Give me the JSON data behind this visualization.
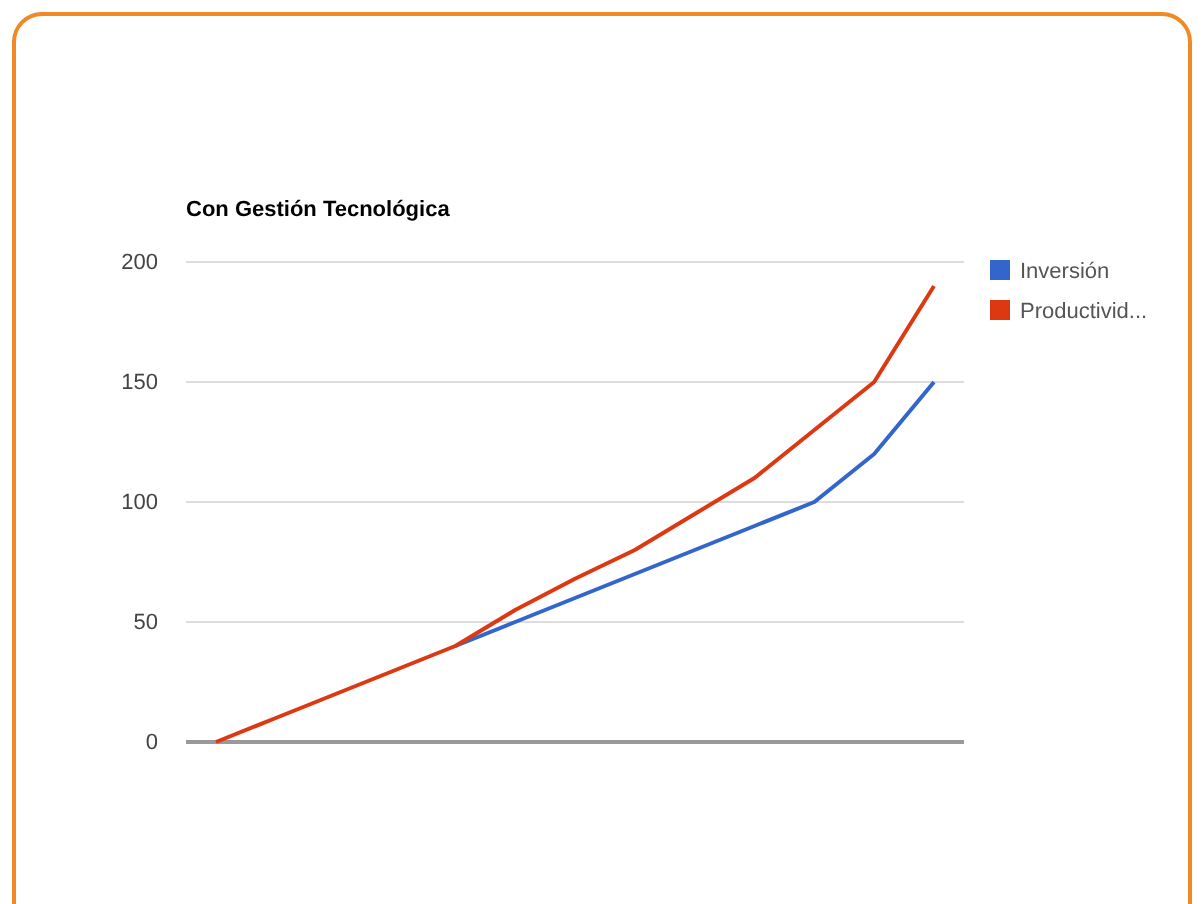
{
  "chart_data": {
    "type": "line",
    "title": "Con Gestión Tecnológica",
    "categories": [
      null,
      null,
      null,
      null,
      null,
      null,
      null,
      null,
      null,
      null,
      null,
      null,
      null
    ],
    "series": [
      {
        "name": "Inversión",
        "color": "#3366cc",
        "values": [
          null,
          null,
          null,
          null,
          40,
          50,
          60,
          70,
          80,
          90,
          100,
          120,
          150
        ]
      },
      {
        "name": "Productivid...",
        "color": "#dc3912",
        "values": [
          0,
          10,
          20,
          30,
          40,
          55,
          68,
          80,
          95,
          110,
          130,
          150,
          190
        ]
      }
    ],
    "ylim": [
      0,
      200
    ],
    "yticks": [
      0,
      50,
      100,
      150,
      200
    ],
    "grid": "y",
    "legend": "right",
    "marker": "none",
    "line_style": "solid"
  }
}
